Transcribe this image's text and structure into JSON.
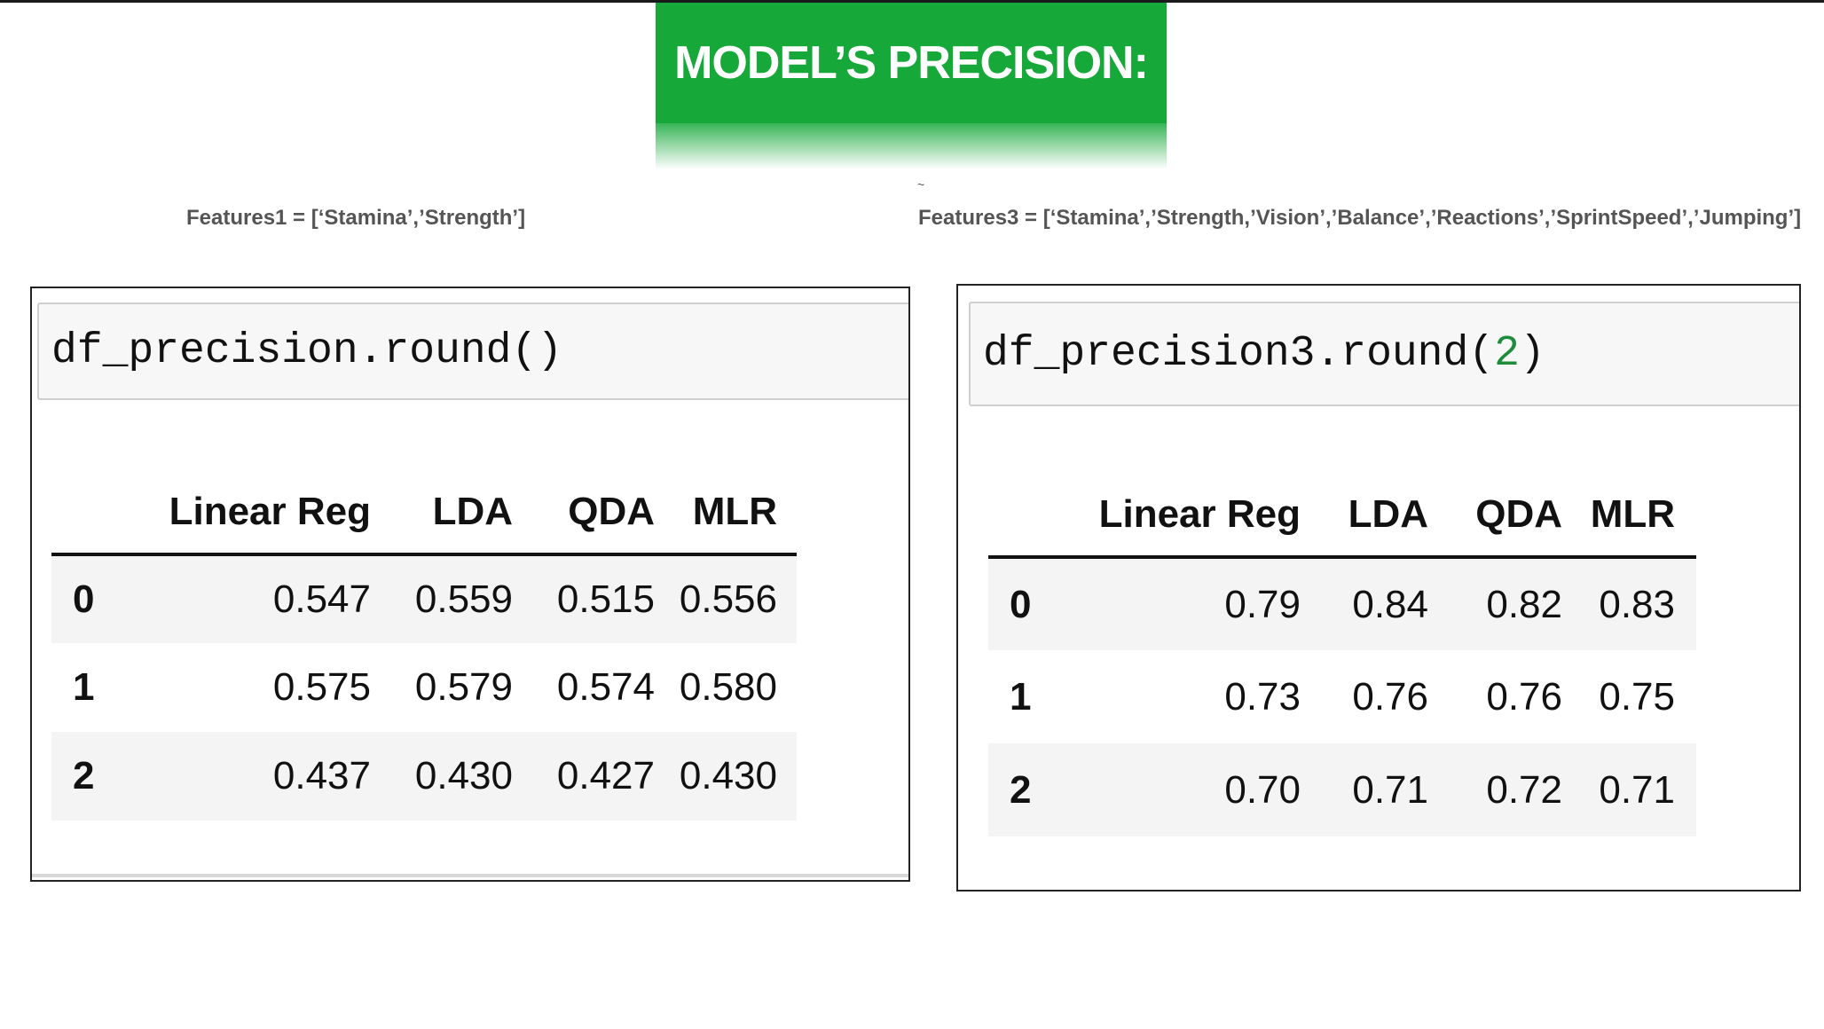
{
  "title": "MODEL’S PRECISION:",
  "tilde": "~",
  "features1_label": "Features1 = [‘Stamina’,’Strength’]",
  "features3_label": "Features3 = [‘Stamina’,’Strength,’Vision’,’Balance’,’Reactions’,’SprintSpeed’,’Jumping’]",
  "left": {
    "code_prefix": "df_precision.round()",
    "columns": [
      "Linear Reg",
      "LDA",
      "QDA",
      "MLR"
    ],
    "rows": [
      {
        "index": "0",
        "values": [
          "0.547",
          "0.559",
          "0.515",
          "0.556"
        ]
      },
      {
        "index": "1",
        "values": [
          "0.575",
          "0.579",
          "0.574",
          "0.580"
        ]
      },
      {
        "index": "2",
        "values": [
          "0.437",
          "0.430",
          "0.427",
          "0.430"
        ]
      }
    ]
  },
  "right": {
    "code_prefix": "df_precision3.round(",
    "code_arg": "2",
    "code_suffix": ")",
    "columns": [
      "Linear Reg",
      "LDA",
      "QDA",
      "MLR"
    ],
    "rows": [
      {
        "index": "0",
        "values": [
          "0.79",
          "0.84",
          "0.82",
          "0.83"
        ]
      },
      {
        "index": "1",
        "values": [
          "0.73",
          "0.76",
          "0.76",
          "0.75"
        ]
      },
      {
        "index": "2",
        "values": [
          "0.70",
          "0.71",
          "0.72",
          "0.71"
        ]
      }
    ]
  },
  "colors": {
    "banner": "#16a839",
    "code_arg": "#1e8c3a",
    "stripe": "#f4f4f4"
  }
}
